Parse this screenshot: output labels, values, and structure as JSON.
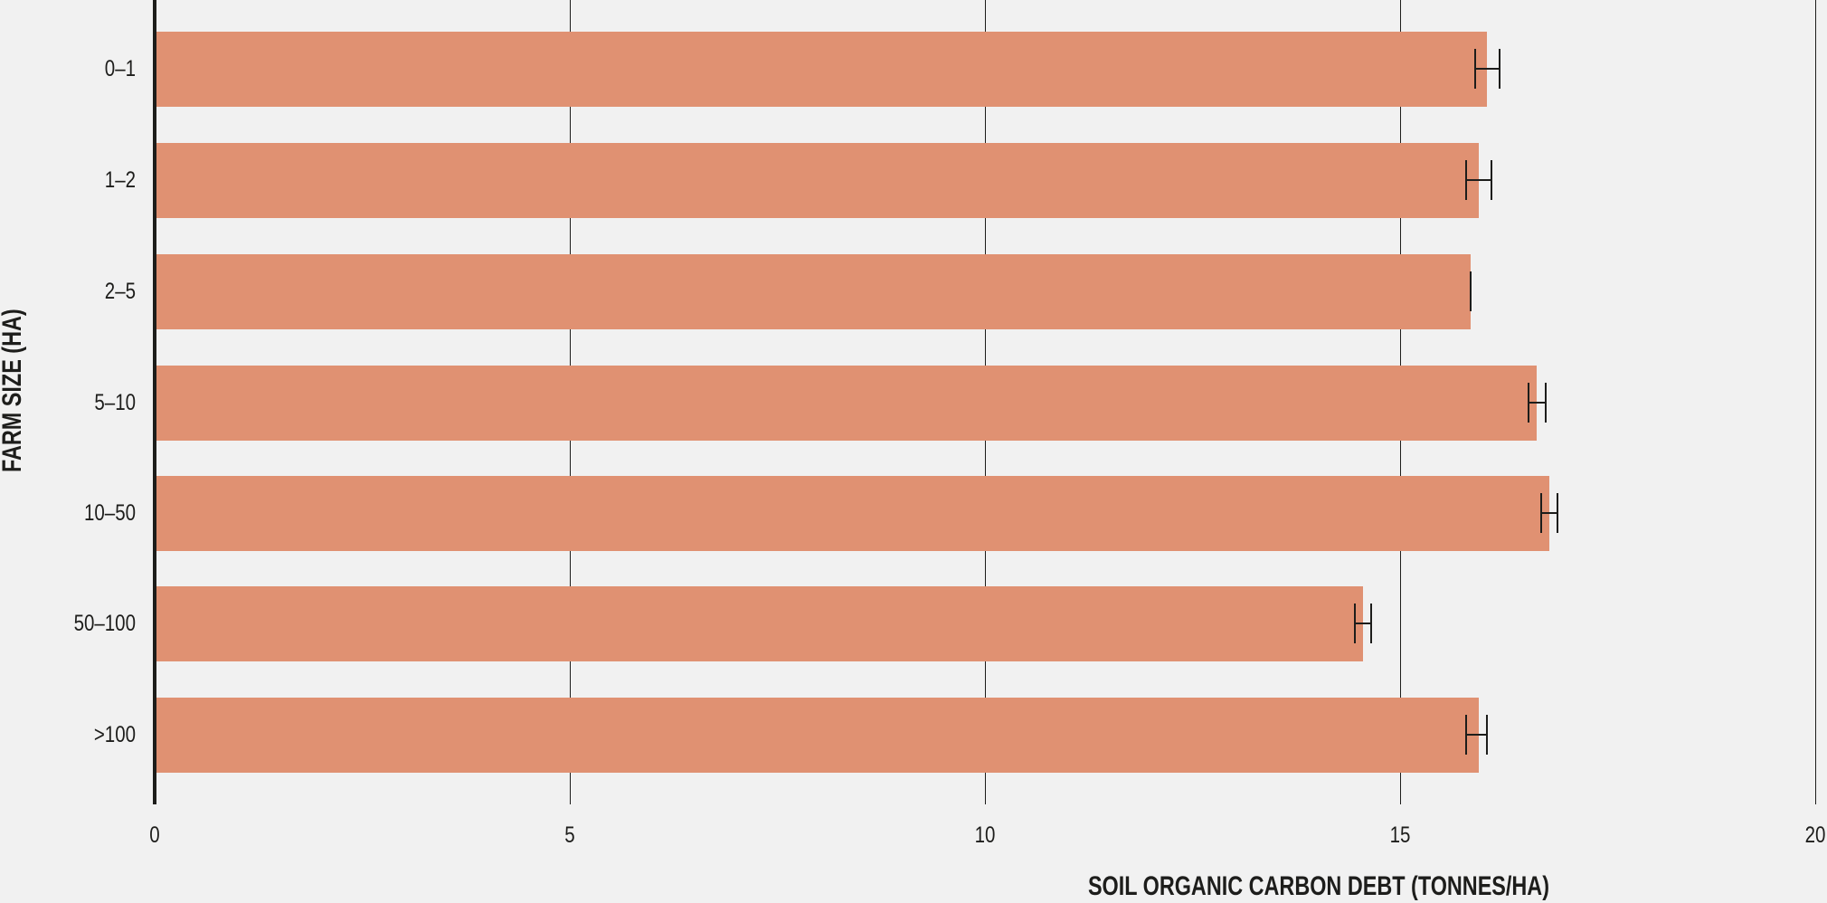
{
  "chart_data": {
    "type": "bar",
    "orientation": "horizontal",
    "title": "",
    "xlabel": "SOIL ORGANIC CARBON DEBT (TONNES/HA)",
    "ylabel": "FARM SIZE (HA)",
    "xlim": [
      0,
      20
    ],
    "xticks": [
      "0",
      "5",
      "10",
      "15",
      "20"
    ],
    "grid": "vertical gridlines at x ticks",
    "legend": null,
    "categories": [
      "0–1",
      "1–2",
      "2–5",
      "5–10",
      "10–50",
      "50–100",
      ">100"
    ],
    "values": [
      16.05,
      15.95,
      15.85,
      16.65,
      16.8,
      14.55,
      15.95
    ],
    "error_bars": [
      {
        "low": 15.9,
        "high": 16.2
      },
      {
        "low": 15.8,
        "high": 16.1
      },
      {
        "low": 15.85,
        "high": 15.85
      },
      {
        "low": 16.55,
        "high": 16.75
      },
      {
        "low": 16.7,
        "high": 16.9
      },
      {
        "low": 14.45,
        "high": 14.65
      },
      {
        "low": 15.8,
        "high": 16.05
      }
    ],
    "colors": {
      "bar": "#e09172",
      "axis": "#1d1d1b",
      "background": "#f1f1f1"
    }
  }
}
